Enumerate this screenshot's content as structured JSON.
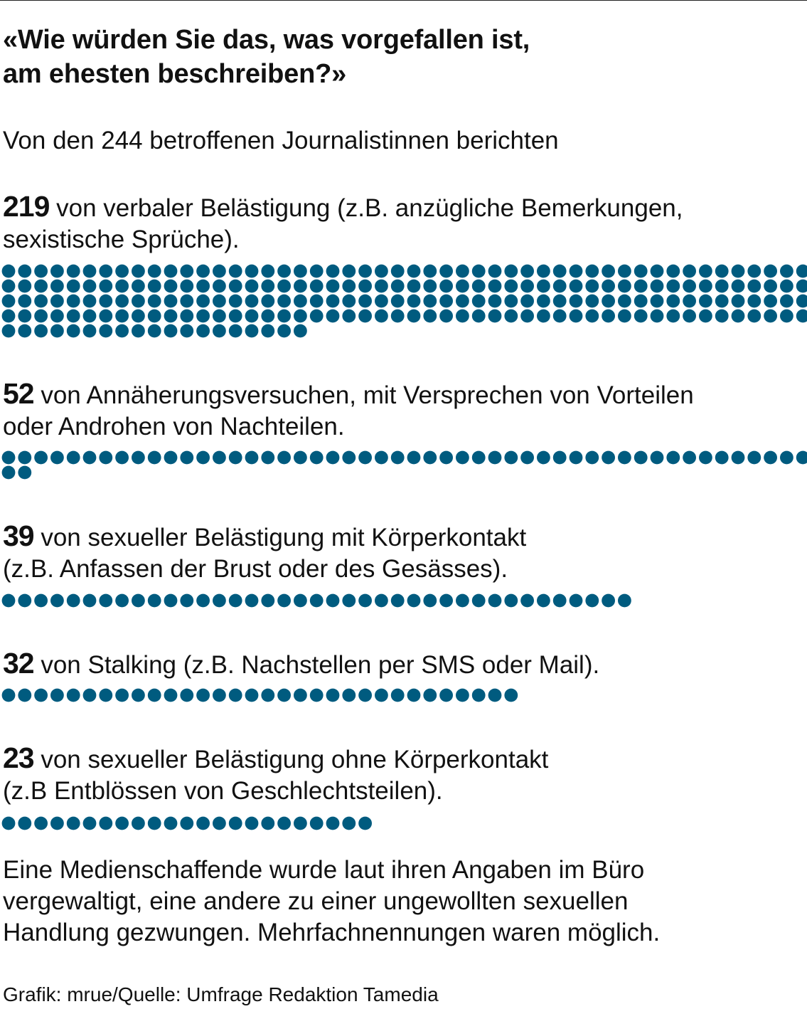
{
  "title": {
    "line1": "«Wie würden Sie das, was vorgefallen ist,",
    "line2": "am ehesten beschreiben?»"
  },
  "subtitle": "Von den 244 betroffenen Journalistinnen berichten",
  "dot_color": "#005b7f",
  "chart_data": {
    "type": "unit-dot",
    "title": "«Wie würden Sie das, was vorgefallen ist, am ehesten beschreiben?»",
    "total": 244,
    "series": [
      {
        "value": 219,
        "number": "219",
        "line1": " von verbaler Belästigung (z.B. anzügliche Bemerkungen,",
        "line2": "sexistische Sprüche)."
      },
      {
        "value": 52,
        "number": "52",
        "line1": " von Annäherungsversuchen, mit Versprechen von Vorteilen",
        "line2": "oder Androhen von Nachteilen."
      },
      {
        "value": 39,
        "number": "39",
        "line1": " von sexueller Belästigung mit Körperkontakt",
        "line2": "(z.B. Anfassen der Brust oder des Gesässes)."
      },
      {
        "value": 32,
        "number": "32",
        "line1": " von Stalking (z.B. Nachstellen per SMS oder Mail).",
        "line2": ""
      },
      {
        "value": 23,
        "number": "23",
        "line1": " von sexueller Belästigung ohne Körperkontakt",
        "line2": "(z.B Entblössen von Geschlechtsteilen)."
      }
    ]
  },
  "footnote": {
    "line1": "Eine Medienschaffende wurde laut ihren Angaben im Büro",
    "line2": "vergewaltigt, eine andere zu einer ungewollten sexuellen",
    "line3": "Handlung gezwungen. Mehrfachnennungen waren möglich."
  },
  "source": "Grafik: mrue/Quelle: Umfrage Redaktion Tamedia"
}
